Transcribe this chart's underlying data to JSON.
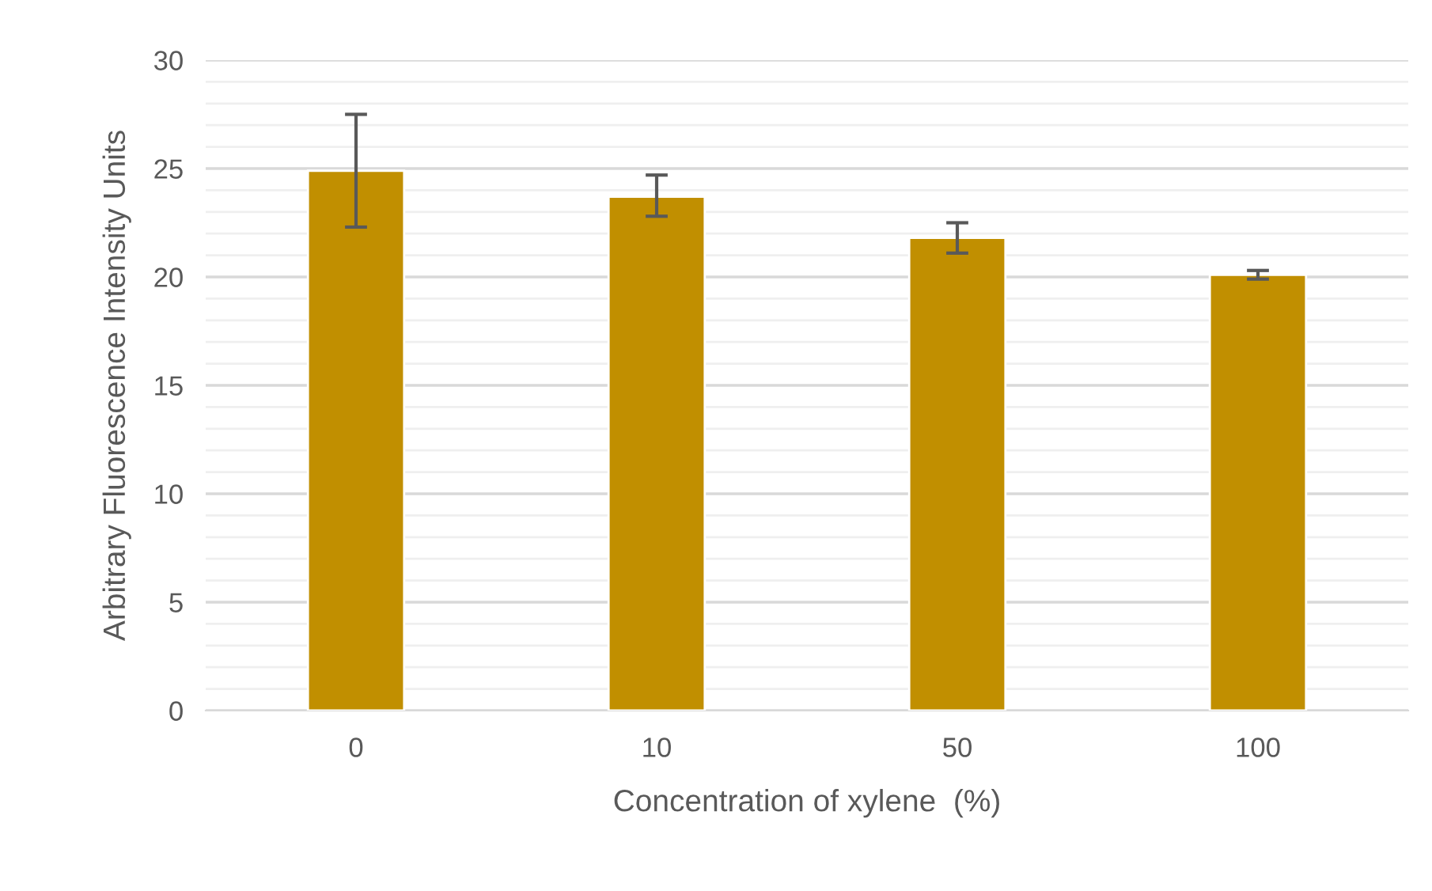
{
  "chart_data": {
    "type": "bar",
    "xlabel": "Concentration of xylene  (%)",
    "ylabel": "Arbitrary Fluorescence Intensity Units",
    "categories": [
      "0",
      "10",
      "50",
      "100"
    ],
    "values": [
      24.9,
      23.7,
      21.8,
      20.1
    ],
    "errors": [
      [
        22.3,
        27.5
      ],
      [
        22.8,
        24.7
      ],
      [
        21.1,
        22.5
      ],
      [
        19.9,
        20.3
      ]
    ],
    "color": "#c18f00",
    "ylim": [
      0,
      30
    ],
    "yticks": [
      0,
      {
        "value": 1,
        "label": null
      },
      {
        "value": 2,
        "label": null
      },
      {
        "value": 3,
        "label": null
      },
      {
        "value": 4,
        "label": null
      },
      5,
      {
        "value": 6,
        "label": null
      },
      {
        "value": 7,
        "label": null
      },
      {
        "value": 8,
        "label": null
      },
      {
        "value": 9,
        "label": null
      },
      10,
      {
        "value": 11,
        "label": null
      },
      {
        "value": 12,
        "label": null
      },
      {
        "value": 13,
        "label": null
      },
      {
        "value": 14,
        "label": null
      },
      15,
      {
        "value": 16,
        "label": null
      },
      {
        "value": 17,
        "label": null
      },
      {
        "value": 18,
        "label": null
      },
      {
        "value": 19,
        "label": null
      },
      20,
      {
        "value": 21,
        "label": null
      },
      {
        "value": 22,
        "label": null
      },
      {
        "value": 23,
        "label": null
      },
      {
        "value": 24,
        "label": null
      },
      25,
      {
        "value": 26,
        "label": null
      },
      {
        "value": 27,
        "label": null
      },
      {
        "value": 28,
        "label": null
      },
      {
        "value": 29,
        "label": null
      },
      30
    ],
    "grid": "y"
  }
}
